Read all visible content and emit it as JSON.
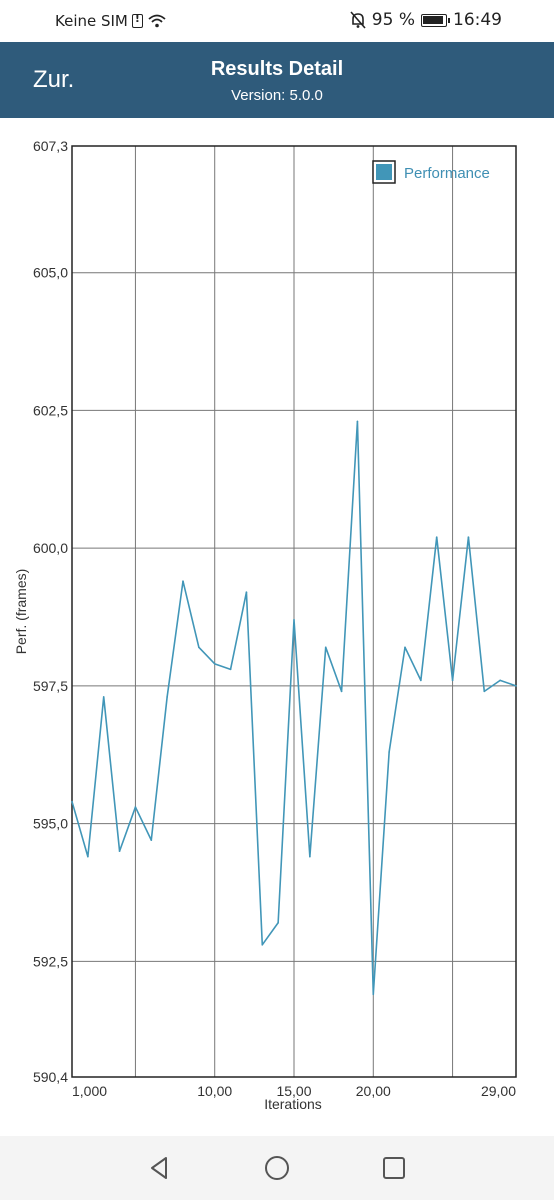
{
  "status": {
    "carrier": "Keine SIM",
    "battery_text": "95 %",
    "time": "16:49"
  },
  "header": {
    "back_label": "Zur.",
    "title": "Results Detail",
    "version": "Version: 5.0.0"
  },
  "chart_data": {
    "type": "line",
    "title": "",
    "xlabel": "Iterations",
    "ylabel": "Perf. (frames)",
    "xlim": [
      0,
      28
    ],
    "ylim": [
      590.4,
      607.3
    ],
    "yticks": [
      590.4,
      592.5,
      595.0,
      597.5,
      600.0,
      602.5,
      605.0,
      607.3
    ],
    "ytick_labels": [
      "590,4",
      "592,5",
      "595,0",
      "597,5",
      "600,0",
      "602,5",
      "605,0",
      "607,3"
    ],
    "xtick_labels": [
      {
        "x": 0,
        "label": "1,000"
      },
      {
        "x": 9,
        "label": "10,00"
      },
      {
        "x": 14,
        "label": "15,00"
      },
      {
        "x": 19,
        "label": "20,00"
      },
      {
        "x": 28,
        "label": "29,00"
      }
    ],
    "xgrid": [
      0,
      4,
      9,
      14,
      19,
      24,
      28
    ],
    "grid": true,
    "legend_position": "top-right",
    "series": [
      {
        "name": "Performance",
        "color": "#4196b8",
        "x": [
          0,
          1,
          2,
          3,
          4,
          5,
          6,
          7,
          8,
          9,
          10,
          11,
          12,
          13,
          14,
          15,
          16,
          17,
          18,
          19,
          20,
          21,
          22,
          23,
          24,
          25,
          26,
          27,
          28
        ],
        "values": [
          595.4,
          594.4,
          597.3,
          594.5,
          595.3,
          594.7,
          597.3,
          599.4,
          598.2,
          597.9,
          597.8,
          599.2,
          592.8,
          593.2,
          598.7,
          594.4,
          598.2,
          597.4,
          602.3,
          591.9,
          596.3,
          598.2,
          597.6,
          600.2,
          597.6,
          600.2,
          597.4,
          597.6,
          597.5
        ]
      }
    ]
  },
  "nav": {
    "back_icon": "triangle-back-icon",
    "home_icon": "circle-home-icon",
    "recents_icon": "square-recents-icon"
  }
}
